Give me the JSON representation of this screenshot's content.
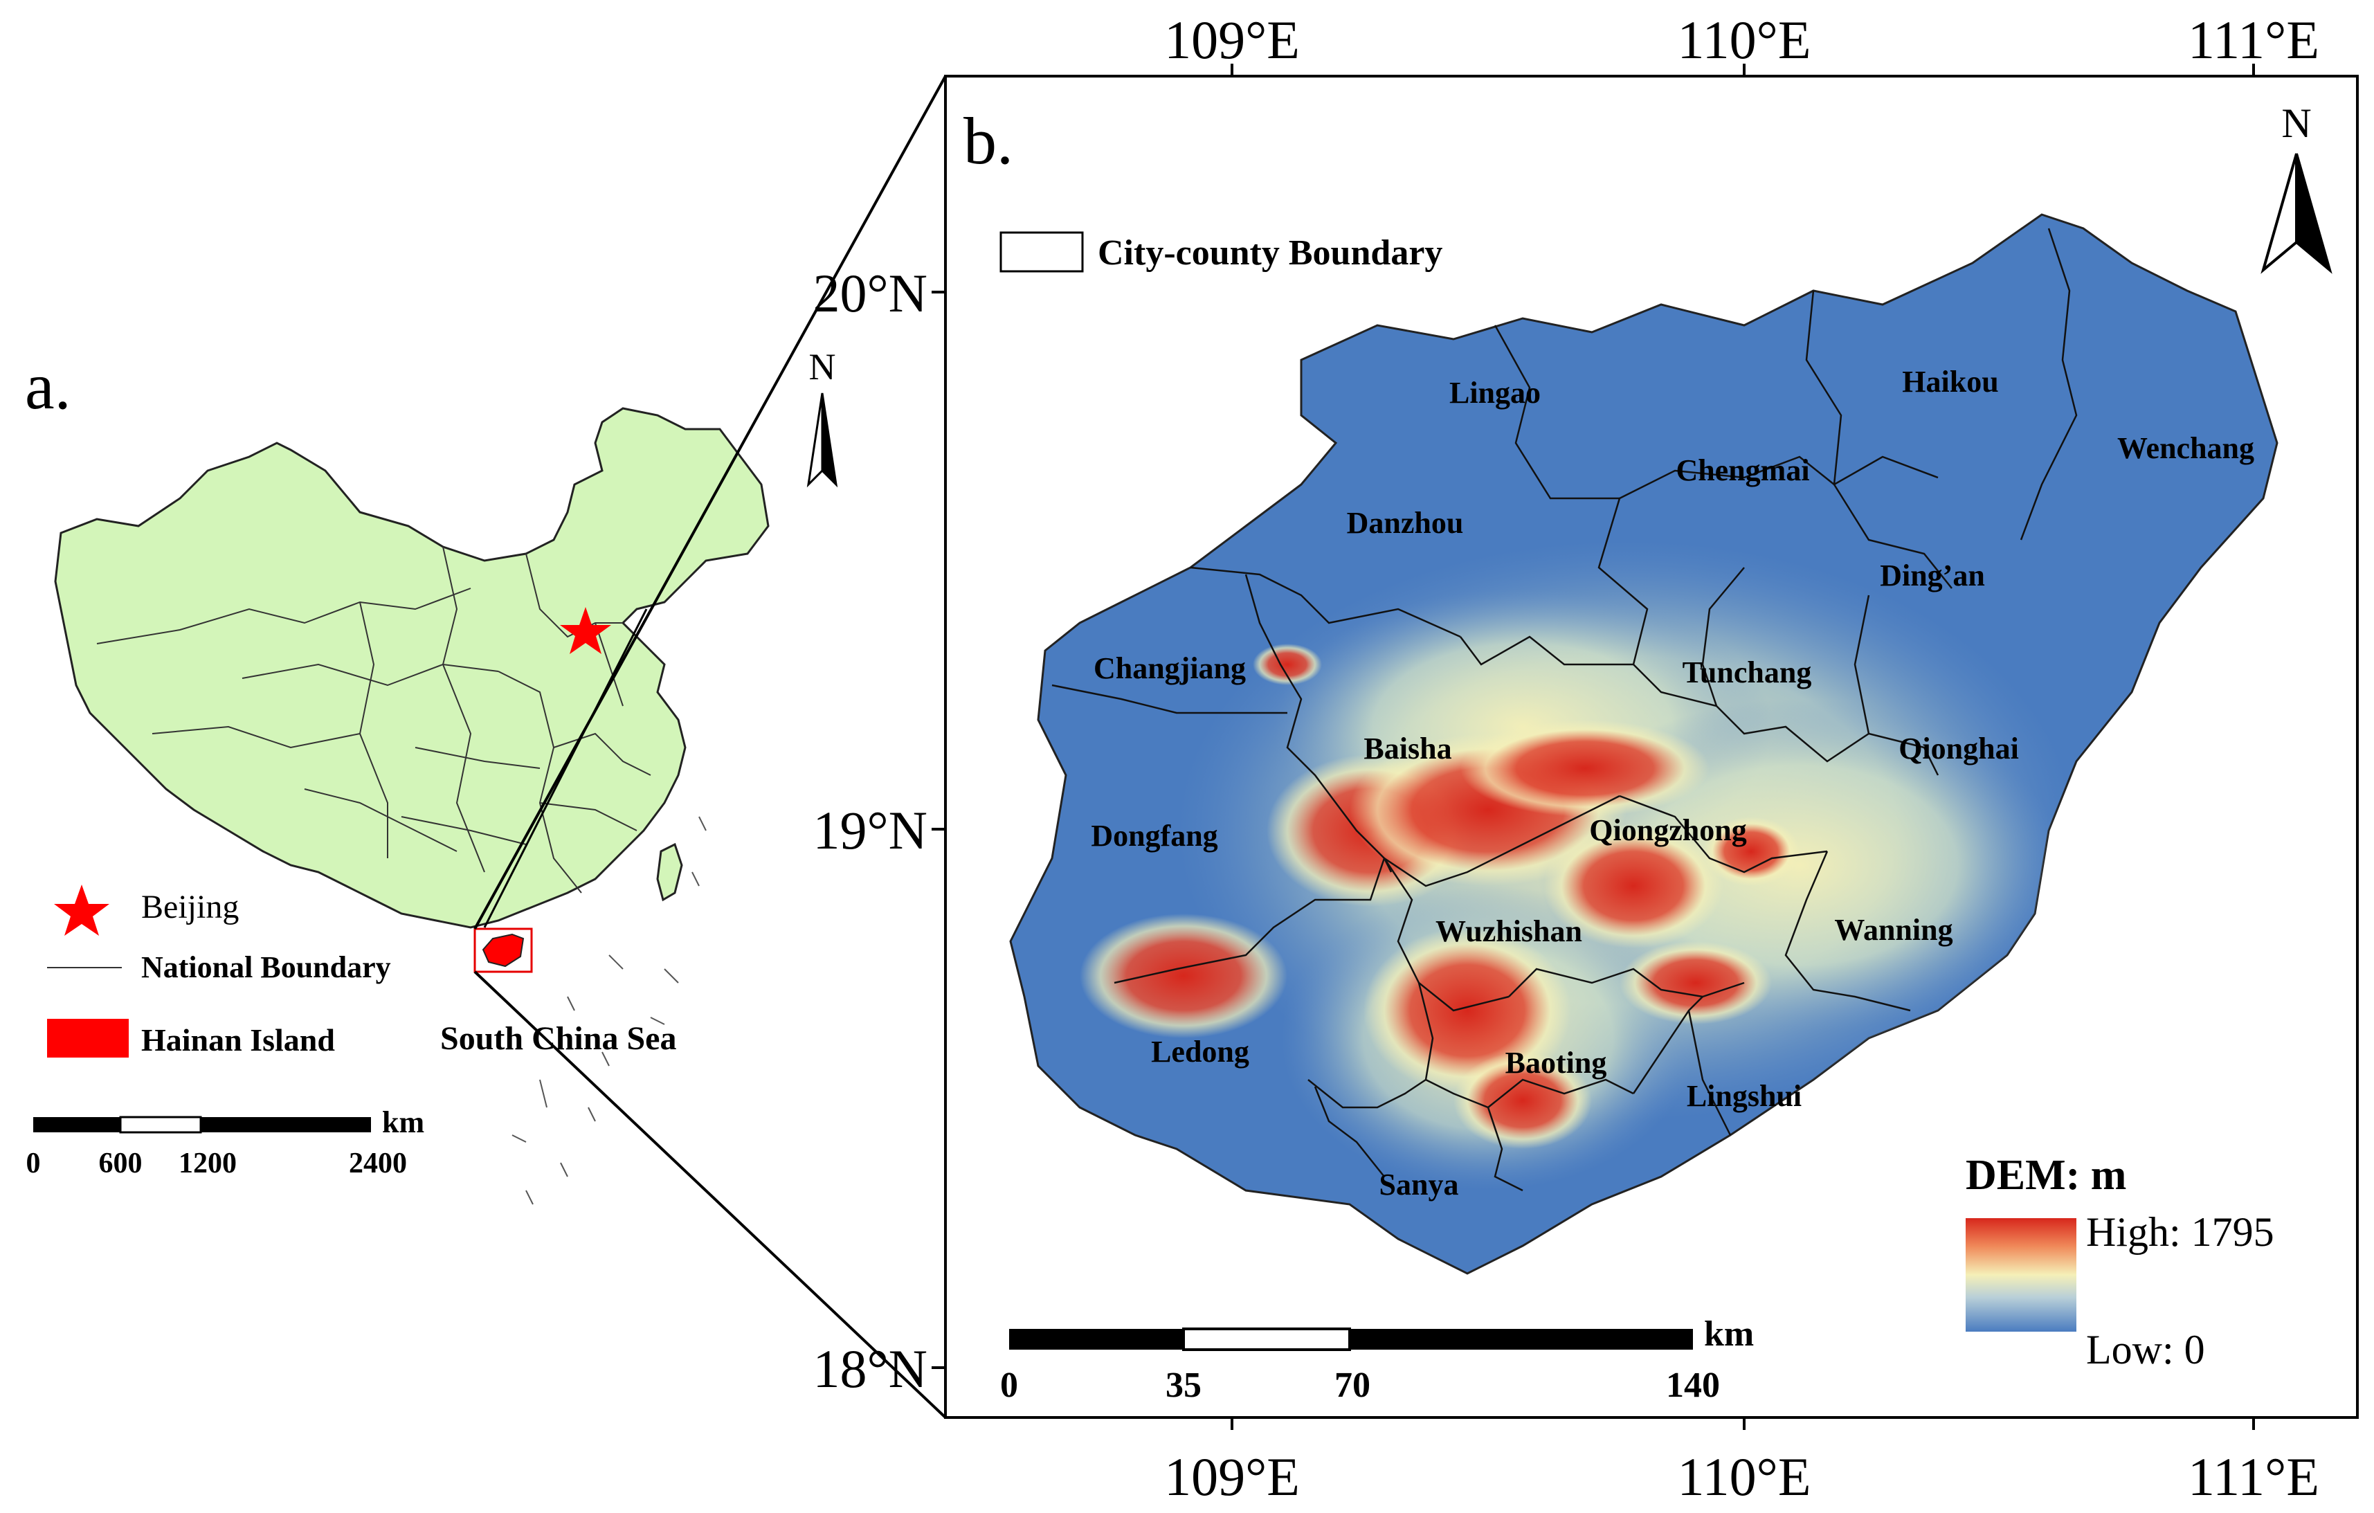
{
  "panel_a": {
    "label": "a.",
    "north": "N",
    "legend": {
      "capital": "Beijing",
      "boundary": "National Boundary",
      "island": "Hainan Island"
    },
    "sea_label": "South China Sea",
    "scalebar": {
      "unit": "km",
      "ticks": [
        "0",
        "600",
        "1200",
        "2400"
      ]
    },
    "colors": {
      "land": "#d3f5b9",
      "highlight": "#ff0000"
    }
  },
  "panel_b": {
    "label": "b.",
    "north": "N",
    "legend_boundary": "City-county Boundary",
    "top_lon_labels": [
      "109°E",
      "110°E",
      "111°E"
    ],
    "bottom_lon_labels": [
      "109°E",
      "110°E",
      "111°E"
    ],
    "lat_labels": [
      "20°N",
      "19°N",
      "18°N"
    ],
    "cities": [
      {
        "name": "Lingao"
      },
      {
        "name": "Haikou"
      },
      {
        "name": "Chengmai"
      },
      {
        "name": "Wenchang"
      },
      {
        "name": "Danzhou"
      },
      {
        "name": "Ding’an"
      },
      {
        "name": "Changjiang"
      },
      {
        "name": "Tunchang"
      },
      {
        "name": "Baisha"
      },
      {
        "name": "Qionghai"
      },
      {
        "name": "Dongfang"
      },
      {
        "name": "Qiongzhong"
      },
      {
        "name": "Wuzhishan"
      },
      {
        "name": "Wanning"
      },
      {
        "name": "Ledong"
      },
      {
        "name": "Baoting"
      },
      {
        "name": "Lingshui"
      },
      {
        "name": "Sanya"
      }
    ],
    "dem_legend": {
      "title": "DEM: m",
      "high": "High: 1795",
      "low": "Low: 0"
    },
    "scalebar": {
      "unit": "km",
      "ticks": [
        "0",
        "35",
        "70",
        "140"
      ]
    },
    "colors": {
      "low": "#4a7cc0",
      "mid": "#f5f0b8",
      "high": "#d7271c"
    }
  }
}
